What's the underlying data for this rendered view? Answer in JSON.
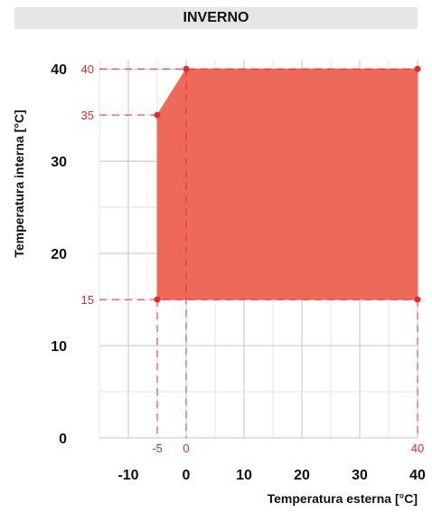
{
  "chart_data": {
    "type": "area",
    "title": "INVERNO",
    "xlabel": "Temperatura esterna [°C]",
    "ylabel": "Temperatura interna [°C]",
    "xlim": [
      -15,
      40
    ],
    "ylim": [
      0,
      41
    ],
    "grid": true,
    "x_ticks": [
      "-10",
      "0",
      "10",
      "20",
      "30",
      "40"
    ],
    "y_ticks": [
      "0",
      "10",
      "20",
      "30",
      "40"
    ],
    "region": {
      "color": "#ee6a58",
      "points": [
        [
          -5,
          15
        ],
        [
          40,
          15
        ],
        [
          40,
          40
        ],
        [
          0,
          40
        ],
        [
          -5,
          35
        ],
        [
          -5,
          15
        ]
      ]
    },
    "marked_points": [
      [
        -5,
        35
      ],
      [
        0,
        40
      ],
      [
        40,
        40
      ],
      [
        -5,
        15
      ],
      [
        40,
        15
      ]
    ],
    "x_markers": [
      "-5",
      "0",
      "40"
    ],
    "y_markers": [
      "40",
      "35",
      "15"
    ]
  }
}
